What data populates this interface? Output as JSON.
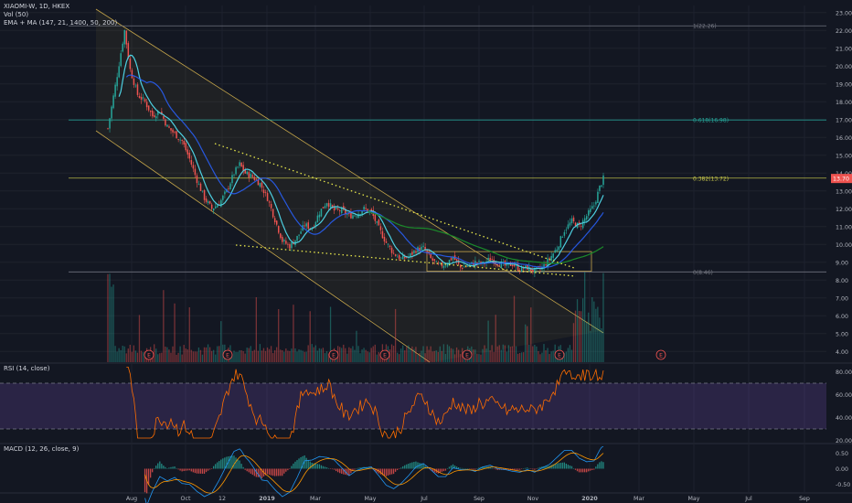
{
  "header": {
    "symbol_line": "XIAOMI-W, 1D, HKEX",
    "vol_line": "Vol (50)",
    "ma_line": "EMA + MA (147, 21, 1400, 50, 200)"
  },
  "panels": {
    "rsi_label": "RSI (14, close)",
    "macd_label": "MACD (12, 26, close, 9)"
  },
  "colors": {
    "background": "#131722",
    "grid": "#1e222d",
    "candle_up": "#26a69a",
    "candle_down": "#ef5350",
    "channel": "#c8a84b",
    "wedge": "#e6e64b",
    "fib": "#4caf50",
    "ema_light": "#4dd0e1",
    "ma_blue": "#2962ff",
    "ma_green": "#1b8a2a",
    "rsi_line": "#ff6d00",
    "rsi_band": "#7e57c2",
    "price_tag": "#ef5350"
  },
  "chart_data": [
    {
      "type": "candlestick",
      "title": "XIAOMI-W, 1D, HKEX",
      "x_labels": [
        "Aug",
        "Oct",
        "12",
        "2019",
        "Mar",
        "May",
        "Jul",
        "Sep",
        "Nov",
        "2020",
        "Mar",
        "May",
        "Jul",
        "Sep"
      ],
      "y_ticks": [
        "23.00",
        "22.00",
        "21.00",
        "20.00",
        "19.00",
        "18.00",
        "17.00",
        "16.00",
        "15.00",
        "14.00",
        "13.00",
        "12.00",
        "11.00",
        "10.00",
        "9.00",
        "8.00",
        "7.00",
        "6.00",
        "5.00",
        "4.00"
      ],
      "ylim": [
        3.4,
        23.4
      ],
      "last_price": "13.70",
      "close_path": [
        [
          0,
          16.5
        ],
        [
          5,
          19.5
        ],
        [
          9,
          22.0
        ],
        [
          12,
          19.8
        ],
        [
          16,
          18.4
        ],
        [
          20,
          18.0
        ],
        [
          24,
          17.2
        ],
        [
          28,
          17.5
        ],
        [
          32,
          16.6
        ],
        [
          36,
          16.2
        ],
        [
          40,
          15.8
        ],
        [
          44,
          14.8
        ],
        [
          48,
          13.6
        ],
        [
          52,
          12.6
        ],
        [
          56,
          12.0
        ],
        [
          60,
          12.3
        ],
        [
          64,
          13.0
        ],
        [
          68,
          14.0
        ],
        [
          71,
          14.5
        ],
        [
          74,
          14.0
        ],
        [
          78,
          13.8
        ],
        [
          82,
          13.4
        ],
        [
          86,
          12.6
        ],
        [
          90,
          11.4
        ],
        [
          94,
          10.2
        ],
        [
          98,
          9.9
        ],
        [
          102,
          10.4
        ],
        [
          106,
          11.1
        ],
        [
          110,
          10.9
        ],
        [
          114,
          11.8
        ],
        [
          118,
          12.4
        ],
        [
          122,
          11.9
        ],
        [
          126,
          11.9
        ],
        [
          130,
          11.6
        ],
        [
          134,
          11.7
        ],
        [
          138,
          12.0
        ],
        [
          142,
          11.8
        ],
        [
          146,
          10.9
        ],
        [
          150,
          10.1
        ],
        [
          154,
          9.5
        ],
        [
          158,
          9.2
        ],
        [
          162,
          9.3
        ],
        [
          166,
          9.7
        ],
        [
          170,
          9.8
        ],
        [
          174,
          9.2
        ],
        [
          178,
          8.8
        ],
        [
          182,
          8.9
        ],
        [
          186,
          9.3
        ],
        [
          190,
          8.7
        ],
        [
          194,
          8.8
        ],
        [
          198,
          9.0
        ],
        [
          202,
          8.9
        ],
        [
          206,
          9.2
        ],
        [
          210,
          9.0
        ],
        [
          214,
          8.8
        ],
        [
          218,
          8.9
        ],
        [
          222,
          8.6
        ],
        [
          226,
          8.7
        ],
        [
          230,
          8.5
        ],
        [
          234,
          8.7
        ],
        [
          238,
          9.2
        ],
        [
          242,
          9.8
        ],
        [
          246,
          10.8
        ],
        [
          250,
          11.3
        ],
        [
          254,
          11.0
        ],
        [
          258,
          11.6
        ],
        [
          262,
          12.2
        ],
        [
          265,
          13.2
        ],
        [
          267,
          13.7
        ]
      ],
      "volume_ylim": [
        0,
        1
      ],
      "annotations": {
        "fib_levels": [
          {
            "label": "1(22.26)",
            "price": 22.26
          },
          {
            "label": "0.618(16.98)",
            "price": 16.98
          },
          {
            "label": "0.382(13.72)",
            "price": 13.72
          },
          {
            "label": "0(8.46)",
            "price": 8.46
          }
        ],
        "earnings_marker": "E"
      }
    },
    {
      "type": "line",
      "title": "RSI (14, close)",
      "y_ticks": [
        "80.00",
        "60.00",
        "40.00",
        "20.00"
      ],
      "ylim": [
        18,
        86
      ],
      "bands": [
        30,
        70
      ]
    },
    {
      "type": "line",
      "title": "MACD (12, 26, close, 9)",
      "y_ticks": [
        "0.50",
        "0.00",
        "-0.50"
      ],
      "ylim": [
        -0.75,
        0.75
      ]
    }
  ]
}
